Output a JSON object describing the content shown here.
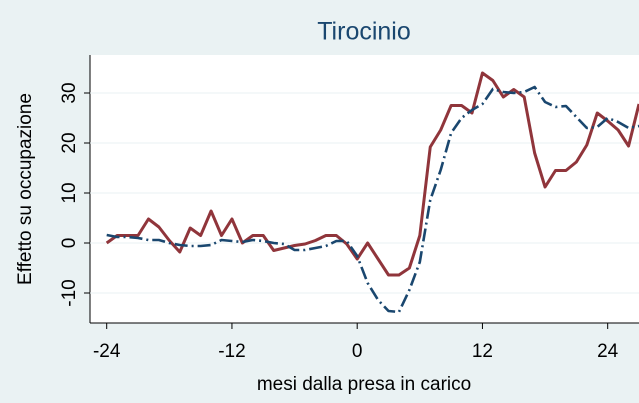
{
  "chart_data": {
    "type": "line",
    "title": "Tirocinio",
    "xlabel": "mesi dalla presa in carico",
    "ylabel": "Effetto su occupazione",
    "x": [
      -24,
      -23,
      -22,
      -21,
      -20,
      -19,
      -18,
      -17,
      -16,
      -15,
      -14,
      -13,
      -12,
      -11,
      -10,
      -9,
      -8,
      -7,
      -6,
      -5,
      -4,
      -3,
      -2,
      -1,
      0,
      1,
      2,
      3,
      4,
      5,
      6,
      7,
      8,
      9,
      10,
      11,
      12,
      13,
      14,
      15,
      16,
      17,
      18,
      19,
      20,
      21,
      22,
      23,
      24,
      25,
      26,
      27
    ],
    "series": [
      {
        "color": "#90353b",
        "style": "solid",
        "values": [
          0,
          1.5,
          1.5,
          1.5,
          4.8,
          3.2,
          0.5,
          -1.8,
          3,
          1.5,
          6.4,
          1.5,
          4.8,
          0,
          1.5,
          1.5,
          -1.5,
          -1,
          -0.5,
          -0.2,
          0.5,
          1.5,
          1.5,
          -0.2,
          -3.2,
          0,
          -3.2,
          -6.4,
          -6.4,
          -5,
          1.5,
          19.2,
          22.6,
          27.5,
          27.5,
          26,
          34,
          32.5,
          29.2,
          30.7,
          29.2,
          18,
          11.2,
          14.5,
          14.5,
          16.2,
          19.6,
          26,
          24.4,
          22.6,
          19.4,
          27.8
        ]
      },
      {
        "color": "#1a476f",
        "style": "dashdot",
        "values": [
          1.6,
          1.2,
          1.2,
          1,
          0.6,
          0.6,
          0,
          -0.4,
          -0.6,
          -0.6,
          -0.4,
          0.6,
          0.4,
          0.2,
          0.6,
          0.4,
          0,
          -0.2,
          -1.4,
          -1.4,
          -1,
          -0.6,
          0.4,
          0.4,
          -2.6,
          -8,
          -11.4,
          -13.6,
          -13.8,
          -9.4,
          -3.8,
          8.6,
          14.6,
          22,
          25,
          26.6,
          27.8,
          30.8,
          30.2,
          30,
          30.2,
          31.2,
          28.2,
          27.2,
          27.4,
          25.2,
          23,
          23.2,
          25,
          24.2,
          23,
          23.4
        ]
      }
    ],
    "xlim": [
      -25.6,
      27
    ],
    "ylim": [
      -16,
      37.6
    ],
    "xticks": [
      -24,
      -12,
      0,
      12,
      24
    ],
    "yticks": [
      -10,
      0,
      10,
      20,
      30
    ],
    "grid": true
  }
}
